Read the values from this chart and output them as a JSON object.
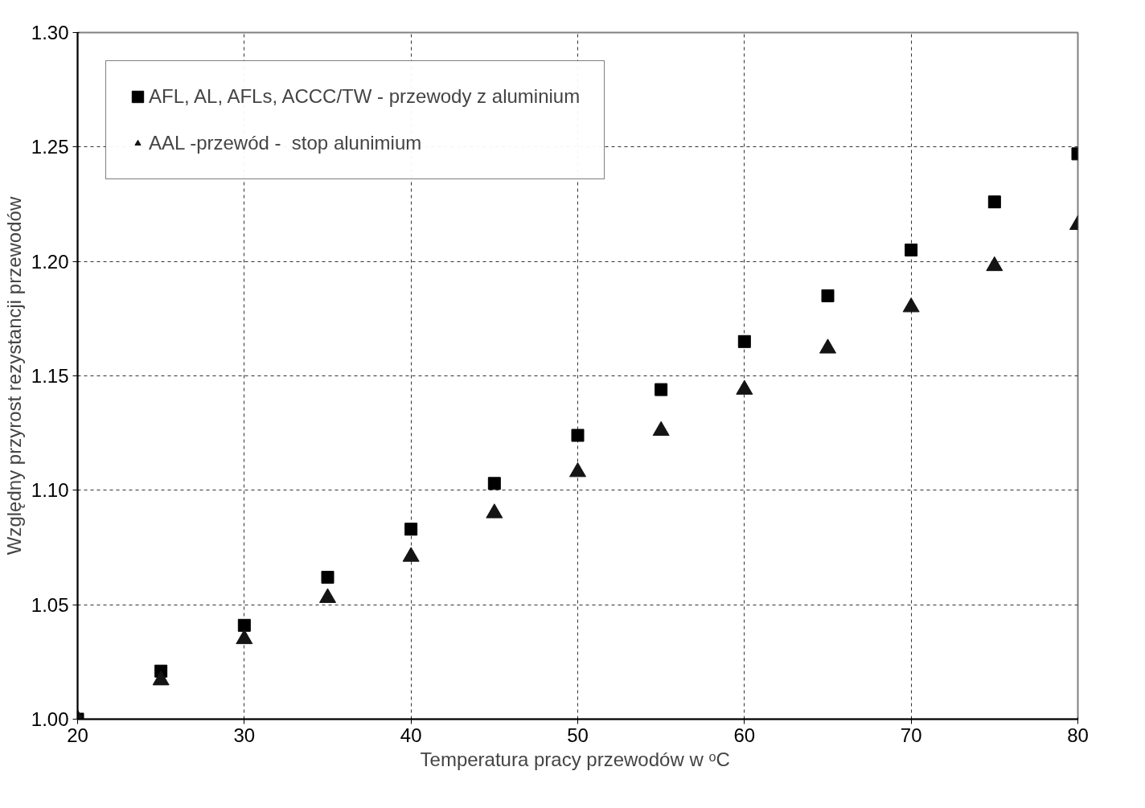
{
  "chart_data": {
    "type": "scatter",
    "xlabel": "Temperatura pracy przewodów  w ᵒC",
    "ylabel": "Względny przyrost rezystancji przewodów",
    "x": [
      20,
      25,
      30,
      35,
      40,
      45,
      50,
      55,
      60,
      65,
      70,
      75,
      80
    ],
    "series": [
      {
        "name": "AFL, AL, AFLs, ACCC/TW - przewody z aluminium",
        "color": "#000000",
        "marker": "square",
        "values": [
          1.0,
          1.021,
          1.041,
          1.062,
          1.083,
          1.103,
          1.124,
          1.144,
          1.165,
          1.185,
          1.205,
          1.226,
          1.247
        ]
      },
      {
        "name": "AAL -przewód -  stop alunimium",
        "color": "#141414",
        "marker": "triangle",
        "values": [
          1.0,
          1.017,
          1.035,
          1.053,
          1.071,
          1.09,
          1.108,
          1.126,
          1.144,
          1.162,
          1.18,
          1.198,
          1.216
        ]
      }
    ],
    "xlim": [
      20,
      80
    ],
    "xticks": [
      20,
      30,
      40,
      50,
      60,
      70,
      80
    ],
    "ylim": [
      1.0,
      1.3
    ],
    "yticks": [
      {
        "value": 1.0,
        "label": "1.00"
      },
      1.05,
      {
        "value": 1.1,
        "label": "1.10"
      },
      1.15,
      {
        "value": 1.2,
        "label": "1.20"
      },
      1.25,
      {
        "value": 1.3,
        "label": "1.30"
      }
    ],
    "grid": true,
    "legend": "top left"
  }
}
